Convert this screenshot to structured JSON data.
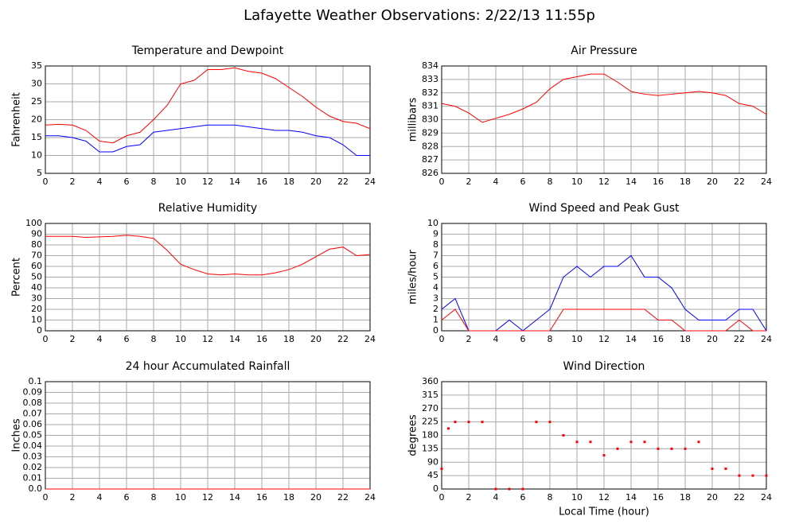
{
  "title": "Lafayette Weather Observations: 2/22/13 11:55p",
  "chart_data": [
    {
      "type": "line",
      "title": "Temperature and Dewpoint",
      "ylabel": "Fahrenheit",
      "x": [
        0,
        1,
        2,
        3,
        4,
        5,
        6,
        7,
        8,
        9,
        10,
        11,
        12,
        13,
        14,
        15,
        16,
        17,
        18,
        19,
        20,
        21,
        22,
        23,
        24
      ],
      "xlim": [
        0,
        24
      ],
      "xticks": [
        0,
        2,
        4,
        6,
        8,
        10,
        12,
        14,
        16,
        18,
        20,
        22,
        24
      ],
      "ylim": [
        5,
        35
      ],
      "yticks": [
        5,
        10,
        15,
        20,
        25,
        30,
        35
      ],
      "grid": true,
      "series": [
        {
          "color": "#ff0000",
          "values": [
            18.5,
            18.7,
            18.5,
            17,
            14,
            13.5,
            15.5,
            16.5,
            20,
            24,
            30,
            31,
            34,
            34,
            34.5,
            33.5,
            33,
            31.5,
            29,
            26.5,
            23.5,
            21,
            19.5,
            19,
            17.5
          ]
        },
        {
          "color": "#0000ff",
          "values": [
            15.5,
            15.5,
            15,
            14,
            11,
            11,
            12.5,
            13,
            16.5,
            17,
            17.5,
            18,
            18.5,
            18.5,
            18.5,
            18,
            17.5,
            17,
            17,
            16.5,
            15.5,
            15,
            13,
            10,
            10
          ]
        }
      ]
    },
    {
      "type": "line",
      "title": "Air Pressure",
      "ylabel": "millibars",
      "x": [
        0,
        1,
        2,
        3,
        4,
        5,
        6,
        7,
        8,
        9,
        10,
        11,
        12,
        13,
        14,
        15,
        16,
        17,
        18,
        19,
        20,
        21,
        22,
        23,
        24
      ],
      "xlim": [
        0,
        24
      ],
      "xticks": [
        0,
        2,
        4,
        6,
        8,
        10,
        12,
        14,
        16,
        18,
        20,
        22,
        24
      ],
      "ylim": [
        826,
        834
      ],
      "yticks": [
        826,
        827,
        828,
        829,
        830,
        831,
        832,
        833,
        834
      ],
      "grid": true,
      "series": [
        {
          "color": "#ff0000",
          "values": [
            831.2,
            831,
            830.5,
            829.8,
            830.1,
            830.4,
            830.8,
            831.3,
            832.3,
            833,
            833.2,
            833.4,
            833.4,
            832.8,
            832.1,
            831.9,
            831.8,
            831.9,
            832,
            832.1,
            832,
            831.8,
            831.2,
            831,
            830.4
          ]
        }
      ]
    },
    {
      "type": "line",
      "title": "Relative Humidity",
      "ylabel": "Percent",
      "x": [
        0,
        1,
        2,
        3,
        4,
        5,
        6,
        7,
        8,
        9,
        10,
        11,
        12,
        13,
        14,
        15,
        16,
        17,
        18,
        19,
        20,
        21,
        22,
        23,
        24
      ],
      "xlim": [
        0,
        24
      ],
      "xticks": [
        0,
        2,
        4,
        6,
        8,
        10,
        12,
        14,
        16,
        18,
        20,
        22,
        24
      ],
      "ylim": [
        0,
        100
      ],
      "yticks": [
        0,
        10,
        20,
        30,
        40,
        50,
        60,
        70,
        80,
        90,
        100
      ],
      "grid": true,
      "series": [
        {
          "color": "#ff0000",
          "values": [
            88,
            88,
            88,
            87,
            87.5,
            88,
            89,
            88,
            86,
            75,
            62,
            57,
            53,
            52,
            53,
            52,
            52,
            54,
            57,
            62,
            69,
            76,
            78,
            70,
            71
          ]
        }
      ]
    },
    {
      "type": "line",
      "title": "Wind Speed and Peak Gust",
      "ylabel": "miles/hour",
      "x": [
        0,
        1,
        2,
        3,
        4,
        5,
        6,
        7,
        8,
        9,
        10,
        11,
        12,
        13,
        14,
        15,
        16,
        17,
        18,
        19,
        20,
        21,
        22,
        23,
        24
      ],
      "xlim": [
        0,
        24
      ],
      "xticks": [
        0,
        2,
        4,
        6,
        8,
        10,
        12,
        14,
        16,
        18,
        20,
        22,
        24
      ],
      "ylim": [
        0,
        10
      ],
      "yticks": [
        0,
        1,
        2,
        3,
        4,
        5,
        6,
        7,
        8,
        9,
        10
      ],
      "grid": true,
      "series": [
        {
          "color": "#0000ff",
          "values": [
            2,
            3,
            0,
            0,
            0,
            1,
            0,
            1,
            2,
            5,
            6,
            5,
            6,
            6,
            7,
            5,
            5,
            4,
            2,
            1,
            1,
            1,
            2,
            2,
            0
          ]
        },
        {
          "color": "#ff0000",
          "values": [
            1,
            2,
            0,
            0,
            0,
            0,
            0,
            0,
            0,
            2,
            2,
            2,
            2,
            2,
            2,
            2,
            1,
            1,
            0,
            0,
            0,
            0,
            1,
            0,
            0
          ]
        }
      ]
    },
    {
      "type": "line",
      "title": "24 hour Accumulated Rainfall",
      "ylabel": "Inches",
      "x": [
        0,
        24
      ],
      "xlim": [
        0,
        24
      ],
      "xticks": [
        0,
        2,
        4,
        6,
        8,
        10,
        12,
        14,
        16,
        18,
        20,
        22,
        24
      ],
      "ylim": [
        0,
        0.1
      ],
      "yticks": [
        {
          "value": 0,
          "label": "0.0"
        },
        0.01,
        0.02,
        0.03,
        0.04,
        0.05,
        0.06,
        0.07,
        0.08,
        0.09,
        0.1
      ],
      "grid": true,
      "series": [
        {
          "color": "#ff0000",
          "values": [
            0,
            0
          ]
        }
      ]
    },
    {
      "type": "scatter",
      "title": "Wind Direction",
      "ylabel": "degrees",
      "xlabel": "Local Time (hour)",
      "x": [
        0,
        0.5,
        1,
        2,
        3,
        4,
        5,
        6,
        7,
        8,
        9,
        10,
        11,
        12,
        13,
        14,
        15,
        16,
        17,
        18,
        19,
        20,
        21,
        22,
        23,
        24
      ],
      "xlim": [
        0,
        24
      ],
      "xticks": [
        0,
        2,
        4,
        6,
        8,
        10,
        12,
        14,
        16,
        18,
        20,
        22,
        24
      ],
      "ylim": [
        0,
        360
      ],
      "yticks": [
        0,
        45,
        90,
        135,
        180,
        225,
        270,
        315,
        360
      ],
      "grid": true,
      "series": [
        {
          "color": "#ff0000",
          "values": [
            68,
            203,
            225,
            225,
            225,
            0,
            0,
            0,
            225,
            225,
            180,
            158,
            158,
            113,
            135,
            158,
            158,
            135,
            135,
            135,
            158,
            68,
            68,
            45,
            45,
            45
          ]
        }
      ]
    }
  ]
}
